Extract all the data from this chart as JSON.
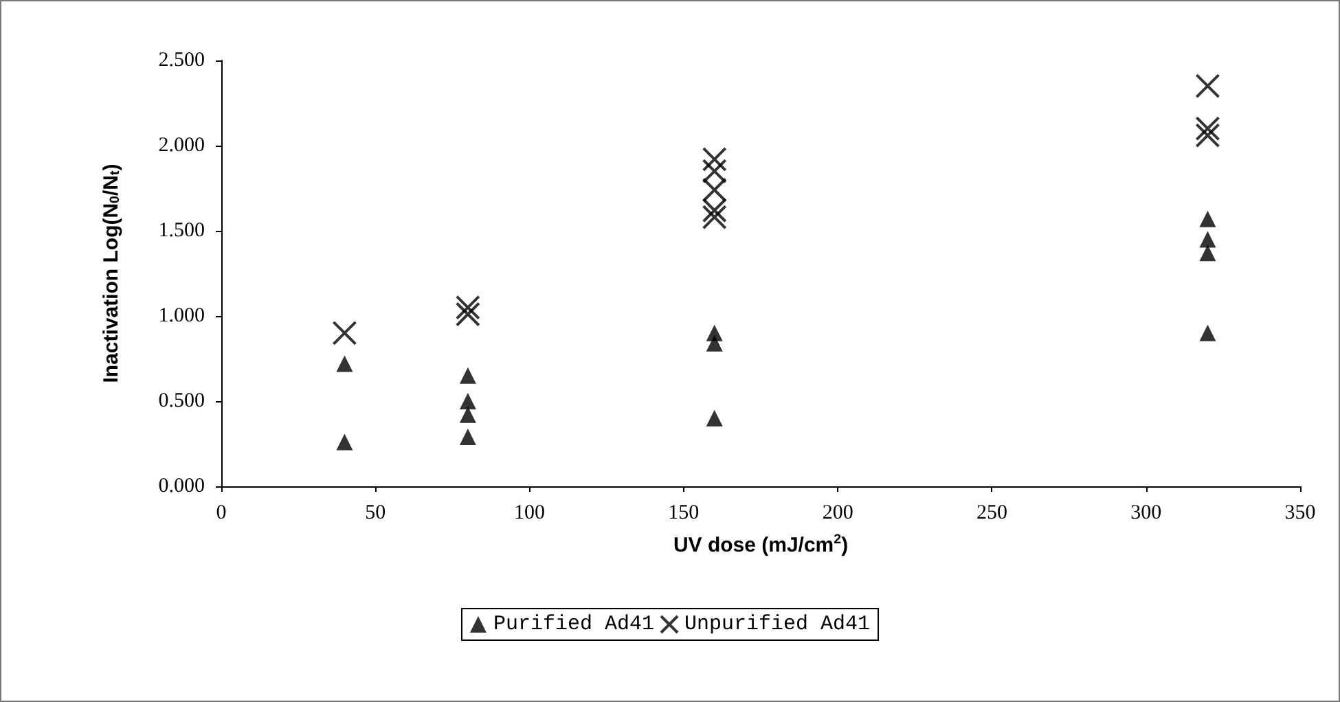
{
  "chart_data": {
    "type": "scatter",
    "xlabel": "UV dose (mJ/cm$^{2}$)",
    "ylabel": "Inactivation Log(N$_{0}$/N$_{t}$)",
    "xlim": [
      0,
      350
    ],
    "xticks": [
      0,
      50,
      100,
      150,
      200,
      250,
      300,
      350
    ],
    "ylim": [
      0,
      2.5
    ],
    "yticks": [
      {
        "value": 0,
        "label": "0.000"
      },
      {
        "value": 0.5,
        "label": "0.500"
      },
      {
        "value": 1,
        "label": "1.000"
      },
      {
        "value": 1.5,
        "label": "1.500"
      },
      {
        "value": 2,
        "label": "2.000"
      },
      {
        "value": 2.5,
        "label": "2.500"
      }
    ],
    "grid": false,
    "legend": "bottom",
    "series": [
      {
        "name": "Purified Ad41",
        "color": "#000000",
        "marker": "triangle",
        "x": [
          40,
          40,
          80,
          80,
          80,
          80,
          160,
          160,
          160,
          320,
          320,
          320,
          320
        ],
        "values": [
          0.72,
          0.26,
          0.65,
          0.5,
          0.42,
          0.29,
          0.9,
          0.84,
          0.4,
          1.57,
          1.45,
          1.37,
          0.9
        ]
      },
      {
        "name": "Unpurified Ad41",
        "color": "#000000",
        "marker": "cross",
        "x": [
          40,
          80,
          80,
          160,
          160,
          160,
          160,
          160,
          320,
          320,
          320
        ],
        "values": [
          0.9,
          1.05,
          1.01,
          1.92,
          1.85,
          1.74,
          1.62,
          1.58,
          2.35,
          2.1,
          2.06
        ]
      }
    ]
  }
}
